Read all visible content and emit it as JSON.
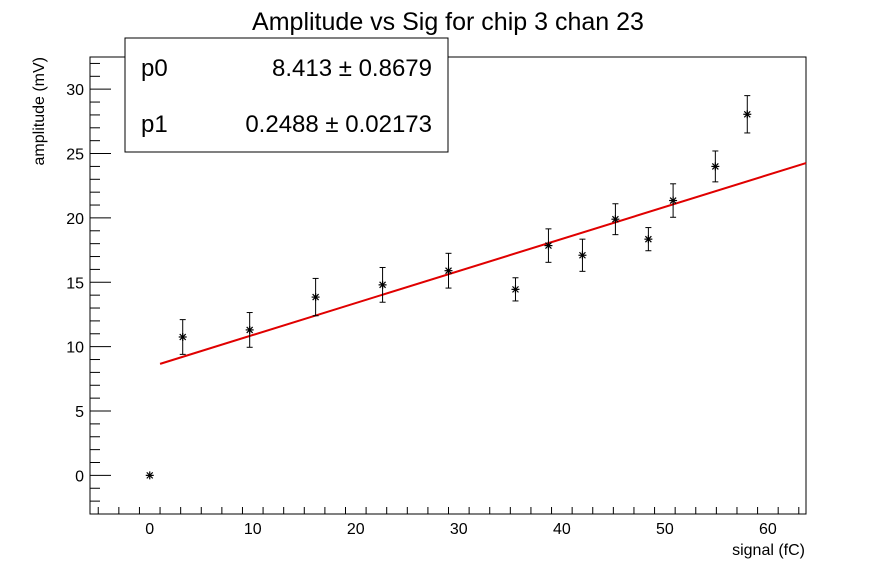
{
  "chart_data": {
    "type": "scatter",
    "title": "Amplitude vs Sig for chip 3 chan 23",
    "xlabel": "signal (fC)",
    "ylabel": "amplitude (mV)",
    "xlim": [
      -5.8,
      63.7
    ],
    "ylim": [
      -3.0,
      32.5
    ],
    "x_ticks": [
      0,
      10,
      20,
      30,
      40,
      50,
      60
    ],
    "y_ticks": [
      0,
      5,
      10,
      15,
      20,
      25,
      30
    ],
    "x_tick_labels": [
      "0",
      "10",
      "20",
      "30",
      "40",
      "50",
      "60"
    ],
    "y_tick_labels": [
      "0",
      "5",
      "10",
      "15",
      "20",
      "25",
      "30"
    ],
    "grid": false,
    "points": [
      {
        "x": 0.0,
        "y": 0.0,
        "err": 0.0
      },
      {
        "x": 3.2,
        "y": 10.75,
        "err": 1.35
      },
      {
        "x": 9.7,
        "y": 11.3,
        "err": 1.35
      },
      {
        "x": 16.1,
        "y": 13.85,
        "err": 1.45
      },
      {
        "x": 22.6,
        "y": 14.8,
        "err": 1.35
      },
      {
        "x": 29.0,
        "y": 15.9,
        "err": 1.35
      },
      {
        "x": 35.5,
        "y": 14.45,
        "err": 0.9
      },
      {
        "x": 38.7,
        "y": 17.85,
        "err": 1.3
      },
      {
        "x": 42.0,
        "y": 17.1,
        "err": 1.25
      },
      {
        "x": 45.2,
        "y": 19.9,
        "err": 1.2
      },
      {
        "x": 48.4,
        "y": 18.35,
        "err": 0.9
      },
      {
        "x": 50.8,
        "y": 21.35,
        "err": 1.3
      },
      {
        "x": 54.9,
        "y": 24.0,
        "err": 1.2
      },
      {
        "x": 58.0,
        "y": 28.05,
        "err": 1.45
      }
    ],
    "fit": {
      "color": "#e00000",
      "x_range": [
        1.0,
        63.7
      ],
      "p0": 8.413,
      "p1": 0.2488
    },
    "stats_box": {
      "placement": "top-left",
      "rows": [
        {
          "name": "p0",
          "value": "8.413",
          "error": "0.8679"
        },
        {
          "name": "p1",
          "value": "0.2488",
          "error": "0.02173"
        }
      ],
      "pm_symbol": "±"
    }
  }
}
